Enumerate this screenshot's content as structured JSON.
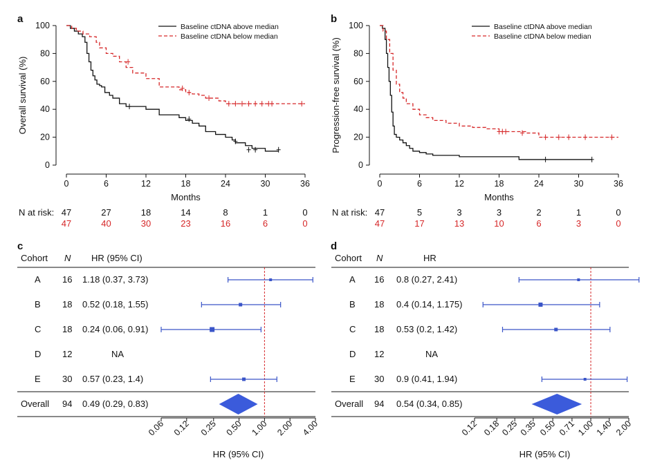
{
  "colors": {
    "black": "#111111",
    "red": "#d62728",
    "blue": "#3a55c8",
    "diamond": "#3b5bdb"
  },
  "chart_data": [
    {
      "panel": "a",
      "type": "line",
      "ylabel": "Overall survival (%)",
      "xlabel": "Months",
      "xticks": [
        0,
        6,
        12,
        18,
        24,
        30,
        36
      ],
      "yticks": [
        0,
        20,
        40,
        60,
        80,
        100
      ],
      "xlim": [
        0,
        36
      ],
      "ylim": [
        0,
        100
      ],
      "legend": {
        "position": "top-right",
        "entries": [
          "Baseline ctDNA above median",
          "Baseline ctDNA below median"
        ]
      },
      "series": [
        {
          "name": "Baseline ctDNA above median",
          "color": "#111111",
          "dash": false,
          "x": [
            0,
            0.6,
            1.2,
            1.8,
            2.4,
            2.8,
            3.1,
            3.4,
            3.7,
            4.0,
            4.3,
            4.6,
            5.0,
            5.3,
            5.8,
            6.5,
            7.0,
            8.0,
            9.0,
            12.0,
            14.0,
            17.0,
            18.0,
            19.0,
            20.0,
            21.0,
            22.5,
            24.0,
            25.0,
            25.5,
            27.0,
            28.0,
            30.0,
            32.0
          ],
          "y": [
            100,
            98,
            96,
            94,
            92,
            88,
            80,
            74,
            68,
            64,
            61,
            58,
            57,
            56,
            52,
            50,
            48,
            44,
            42,
            40,
            36,
            34,
            32,
            30,
            28,
            24,
            22,
            20,
            18,
            16,
            14,
            12,
            10,
            10
          ],
          "censor_x": [
            9.5,
            18.5,
            25.5,
            27.5,
            28.5,
            32.0
          ],
          "censor_y": [
            42,
            33,
            17,
            11,
            11,
            11
          ]
        },
        {
          "name": "Baseline ctDNA below median",
          "color": "#d62728",
          "dash": true,
          "x": [
            0,
            0.8,
            1.5,
            2.5,
            3.5,
            4.5,
            5.0,
            6.0,
            7.0,
            8.0,
            9.0,
            10.0,
            12.0,
            14.0,
            17.0,
            18.0,
            19.0,
            20.0,
            21.0,
            23.0,
            24.0,
            36.0
          ],
          "y": [
            100,
            98,
            96,
            94,
            92,
            88,
            84,
            80,
            78,
            74,
            70,
            66,
            62,
            56,
            54,
            52,
            51,
            50,
            48,
            46,
            44,
            44
          ],
          "censor_x": [
            9.3,
            17.5,
            18.5,
            21.5,
            24.5,
            25.5,
            26.5,
            27.5,
            28.5,
            29.5,
            30.5,
            31.0,
            35.5
          ],
          "censor_y": [
            74,
            55,
            52,
            48,
            44,
            44,
            44,
            44,
            44,
            44,
            44,
            44,
            44
          ]
        }
      ],
      "risk_table": {
        "label": "N at risk:",
        "times": [
          0,
          6,
          12,
          18,
          24,
          30,
          36
        ],
        "above": [
          "47",
          "27",
          "18",
          "14",
          "8",
          "1",
          "0"
        ],
        "below": [
          "47",
          "40",
          "30",
          "23",
          "16",
          "6",
          "0"
        ]
      }
    },
    {
      "panel": "b",
      "type": "line",
      "ylabel": "Progression-free survival (%)",
      "xlabel": "Months",
      "xticks": [
        0,
        6,
        12,
        18,
        24,
        30,
        36
      ],
      "yticks": [
        0,
        20,
        40,
        60,
        80,
        100
      ],
      "xlim": [
        0,
        36
      ],
      "ylim": [
        0,
        100
      ],
      "legend": {
        "position": "top-right",
        "entries": [
          "Baseline ctDNA above median",
          "Baseline ctDNA below median"
        ]
      },
      "series": [
        {
          "name": "Baseline ctDNA above median",
          "color": "#111111",
          "dash": false,
          "x": [
            0,
            0.4,
            0.8,
            1.0,
            1.2,
            1.4,
            1.6,
            1.8,
            2.0,
            2.2,
            2.5,
            3.0,
            3.5,
            4.0,
            4.5,
            5.0,
            6.0,
            7.0,
            8.0,
            10.0,
            12.0,
            14.0,
            16.0,
            18.0,
            20.0,
            21.0,
            32.0
          ],
          "y": [
            100,
            98,
            90,
            80,
            70,
            60,
            50,
            38,
            28,
            22,
            20,
            18,
            16,
            14,
            12,
            10,
            9,
            8,
            7,
            7,
            6,
            6,
            6,
            6,
            6,
            4,
            4
          ],
          "censor_x": [
            25.0,
            32.0
          ],
          "censor_y": [
            4,
            4
          ]
        },
        {
          "name": "Baseline ctDNA below median",
          "color": "#d62728",
          "dash": true,
          "x": [
            0,
            0.5,
            1.0,
            1.5,
            2.0,
            2.5,
            3.0,
            3.5,
            4.0,
            5.0,
            6.0,
            7.0,
            8.0,
            10.0,
            12.0,
            14.0,
            16.0,
            18.0,
            20.0,
            22.0,
            24.0,
            36.0
          ],
          "y": [
            100,
            96,
            90,
            80,
            68,
            58,
            52,
            48,
            44,
            40,
            36,
            34,
            32,
            30,
            28,
            27,
            26,
            24,
            24,
            23,
            20,
            20
          ],
          "censor_x": [
            18.0,
            18.5,
            19.0,
            21.5,
            25.0,
            27.0,
            28.5,
            31.0,
            35.0
          ],
          "censor_y": [
            24,
            24,
            24,
            23,
            20,
            20,
            20,
            20,
            20
          ]
        }
      ],
      "risk_table": {
        "label": "N at risk:",
        "times": [
          0,
          6,
          12,
          18,
          24,
          30,
          36
        ],
        "above": [
          "47",
          "5",
          "3",
          "3",
          "2",
          "1",
          "0"
        ],
        "below": [
          "47",
          "17",
          "13",
          "10",
          "6",
          "3",
          "0"
        ]
      }
    },
    {
      "panel": "c",
      "type": "forest",
      "headers": {
        "cohort": "Cohort",
        "n": "N",
        "hr": "HR (95% CI)"
      },
      "xlabel": "HR (95% CI)",
      "scale": "log2",
      "xticks": [
        0.06,
        0.12,
        0.25,
        0.5,
        1.0,
        2.0,
        4.0
      ],
      "xtick_labels": [
        "0.06",
        "0.12",
        "0.25",
        "0.50",
        "1.00",
        "2.00",
        "4.00"
      ],
      "xlim": [
        0.06,
        4.0
      ],
      "reference": 1.0,
      "rows": [
        {
          "cohort": "A",
          "n": "16",
          "text": "1.18 (0.37, 3.73)",
          "hr": 1.18,
          "lo": 0.37,
          "hi": 3.73,
          "size": 4
        },
        {
          "cohort": "B",
          "n": "18",
          "text": "0.52 (0.18, 1.55)",
          "hr": 0.52,
          "lo": 0.18,
          "hi": 1.55,
          "size": 5
        },
        {
          "cohort": "C",
          "n": "18",
          "text": "0.24 (0.06, 0.91)",
          "hr": 0.24,
          "lo": 0.06,
          "hi": 0.91,
          "size": 7
        },
        {
          "cohort": "D",
          "n": "12",
          "text": "NA",
          "hr": null,
          "lo": null,
          "hi": null,
          "size": 0
        },
        {
          "cohort": "E",
          "n": "30",
          "text": "0.57 (0.23, 1.4)",
          "hr": 0.57,
          "lo": 0.23,
          "hi": 1.4,
          "size": 5
        }
      ],
      "overall": {
        "cohort": "Overall",
        "n": "94",
        "text": "0.49 (0.29, 0.83)",
        "hr": 0.49,
        "lo": 0.29,
        "hi": 0.83
      }
    },
    {
      "panel": "d",
      "type": "forest",
      "headers": {
        "cohort": "Cohort",
        "n": "N",
        "hr": "HR"
      },
      "xlabel": "HR (95% CI)",
      "scale": "log2",
      "xticks": [
        0.12,
        0.18,
        0.25,
        0.35,
        0.5,
        0.71,
        1.0,
        1.4,
        2.0
      ],
      "xtick_labels": [
        "0.12",
        "0.18",
        "0.25",
        "0.35",
        "0.50",
        "0.71",
        "1.00",
        "1.40",
        "2.00"
      ],
      "xlim": [
        0.12,
        2.41
      ],
      "reference": 1.0,
      "rows": [
        {
          "cohort": "A",
          "n": "16",
          "text": "0.8 (0.27, 2.41)",
          "hr": 0.8,
          "lo": 0.27,
          "hi": 2.41,
          "size": 4
        },
        {
          "cohort": "B",
          "n": "18",
          "text": "0.4 (0.14, 1.175)",
          "hr": 0.4,
          "lo": 0.14,
          "hi": 1.175,
          "size": 6
        },
        {
          "cohort": "C",
          "n": "18",
          "text": "0.53 (0.2, 1.42)",
          "hr": 0.53,
          "lo": 0.2,
          "hi": 1.42,
          "size": 5
        },
        {
          "cohort": "D",
          "n": "12",
          "text": "NA",
          "hr": null,
          "lo": null,
          "hi": null,
          "size": 0
        },
        {
          "cohort": "E",
          "n": "30",
          "text": "0.9 (0.41, 1.94)",
          "hr": 0.9,
          "lo": 0.41,
          "hi": 1.94,
          "size": 4
        }
      ],
      "overall": {
        "cohort": "Overall",
        "n": "94",
        "text": "0.54 (0.34, 0.85)",
        "hr": 0.54,
        "lo": 0.34,
        "hi": 0.85
      }
    }
  ]
}
